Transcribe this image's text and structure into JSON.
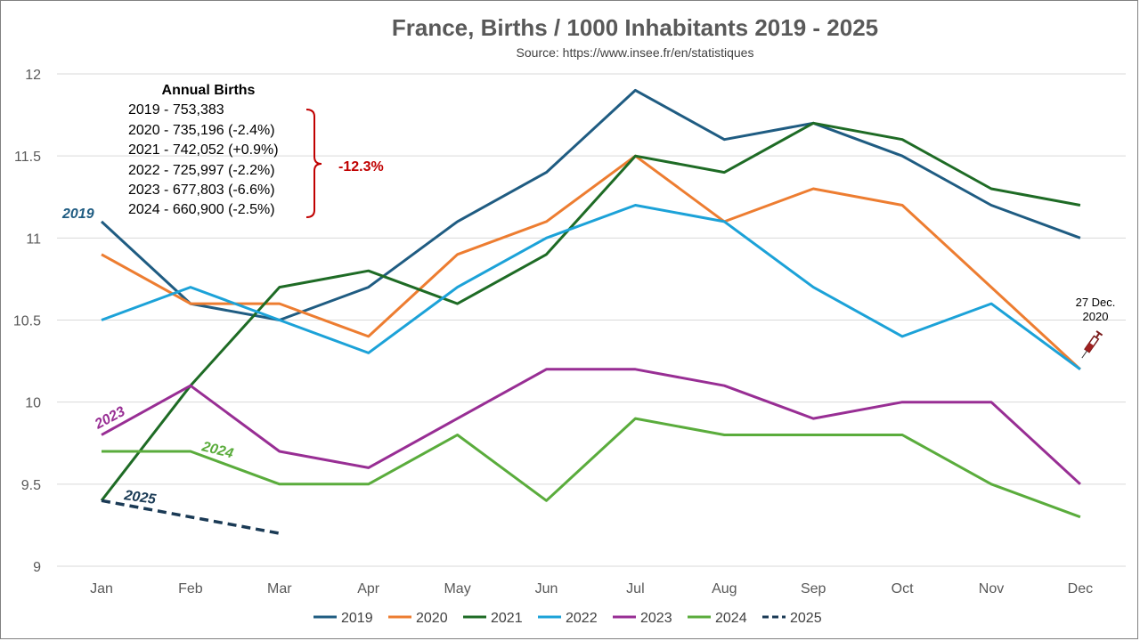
{
  "chart_data": {
    "type": "line",
    "title": "France, Births / 1000 Inhabitants 2019 - 2025",
    "subtitle": "Source: https://www.insee.fr/en/statistiques",
    "categories": [
      "Jan",
      "Feb",
      "Mar",
      "Apr",
      "May",
      "Jun",
      "Jul",
      "Aug",
      "Sep",
      "Oct",
      "Nov",
      "Dec"
    ],
    "ylim": [
      9,
      12
    ],
    "yticks": [
      "9",
      "9.5",
      "10",
      "10.5",
      "11",
      "11.5",
      "12"
    ],
    "grid": true,
    "legend_position": "bottom",
    "series": [
      {
        "name": "2019",
        "color": "#1f5c82",
        "values": [
          11.1,
          10.6,
          10.5,
          10.7,
          11.1,
          11.4,
          11.9,
          11.6,
          11.7,
          11.5,
          11.2,
          11.0
        ]
      },
      {
        "name": "2020",
        "color": "#ed7d31",
        "values": [
          10.9,
          10.6,
          10.6,
          10.4,
          10.9,
          11.1,
          11.5,
          11.1,
          11.3,
          11.2,
          10.7,
          10.2
        ]
      },
      {
        "name": "2021",
        "color": "#1e6b25",
        "values": [
          9.4,
          10.1,
          10.7,
          10.8,
          10.6,
          10.9,
          11.5,
          11.4,
          11.7,
          11.6,
          11.3,
          11.2
        ]
      },
      {
        "name": "2022",
        "color": "#1ca2d8",
        "values": [
          10.5,
          10.7,
          10.5,
          10.3,
          10.7,
          11.0,
          11.2,
          11.1,
          10.7,
          10.4,
          10.6,
          10.2
        ]
      },
      {
        "name": "2023",
        "color": "#982e94",
        "values": [
          9.8,
          10.1,
          9.7,
          9.6,
          9.9,
          10.2,
          10.2,
          10.1,
          9.9,
          10.0,
          10.0,
          9.5
        ]
      },
      {
        "name": "2024",
        "color": "#5aac3c",
        "values": [
          9.7,
          9.7,
          9.5,
          9.5,
          9.8,
          9.4,
          9.9,
          9.8,
          9.8,
          9.8,
          9.5,
          9.3
        ]
      },
      {
        "name": "2025",
        "color": "#1a3a55",
        "dashed": true,
        "values": [
          9.4,
          null,
          9.2,
          null,
          null,
          null,
          null,
          null,
          null,
          null,
          null,
          null
        ]
      }
    ],
    "series_labels": [
      {
        "text": "2019",
        "color": "#1f5c82"
      },
      {
        "text": "2023",
        "color": "#982e94"
      },
      {
        "text": "2024",
        "color": "#5aac3c"
      },
      {
        "text": "2025",
        "color": "#1a3a55"
      }
    ],
    "annotations": {
      "annual_title": "Annual Births",
      "annual_lines": [
        "2019 - 753,383",
        "2020 - 735,196 (-2.4%)",
        "2021 - 742,052 (+0.9%)",
        "2022 - 725,997 (-2.2%)",
        "2023 - 677,803 (-6.6%)",
        "2024 - 660,900 (-2.5%)"
      ],
      "bracket_label": "-12.3%",
      "dec_note_line1": "27 Dec.",
      "dec_note_line2": "2020",
      "dec_icon": "syringe-icon"
    }
  }
}
